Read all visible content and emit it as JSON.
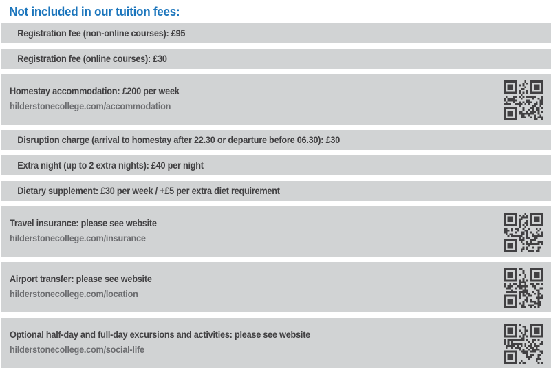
{
  "page": {
    "title": "Not included in our tuition fees:"
  },
  "colors": {
    "title_blue": "#1b75bc",
    "row_bg": "#d1d3d4",
    "text_dark": "#414042",
    "url_gray": "#6d6e71",
    "qr_dark": "#414042"
  },
  "fees": [
    {
      "text": "Registration fee (non-online courses): £95",
      "url": "",
      "qr": false
    },
    {
      "text": "Registration fee (online courses): £30",
      "url": "",
      "qr": false
    },
    {
      "text": "Homestay accommodation: £200 per week",
      "url": "hilderstonecollege.com/accommodation",
      "qr": true
    },
    {
      "text": "Disruption charge (arrival to homestay after 22.30 or departure before 06.30): £30",
      "url": "",
      "qr": false
    },
    {
      "text": "Extra night (up to 2 extra nights): £40 per night",
      "url": "",
      "qr": false
    },
    {
      "text": "Dietary supplement: £30 per week / +£5 per extra diet requirement",
      "url": "",
      "qr": false
    },
    {
      "text": "Travel insurance: please see website",
      "url": "hilderstonecollege.com/insurance",
      "qr": true
    },
    {
      "text": "Airport transfer: please see website",
      "url": "hilderstonecollege.com/location",
      "qr": true
    },
    {
      "text": "Optional half-day and full-day excursions and activities: please see website",
      "url": "hilderstonecollege.com/social-life",
      "qr": true
    }
  ]
}
